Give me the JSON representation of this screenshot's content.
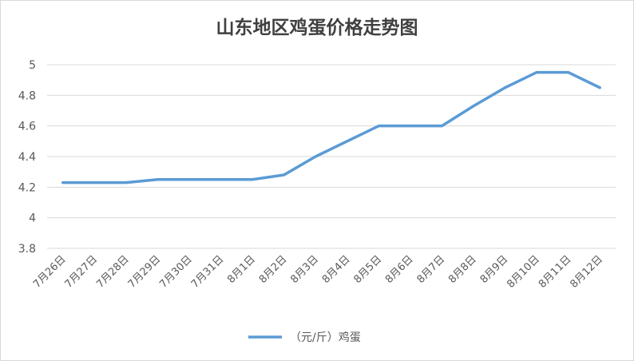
{
  "chart_data": {
    "type": "line",
    "title": "山东地区鸡蛋价格走势图",
    "categories": [
      "7月26日",
      "7月27日",
      "7月28日",
      "7月29日",
      "7月30日",
      "7月31日",
      "8月1日",
      "8月2日",
      "8月3日",
      "8月4日",
      "8月5日",
      "8月6日",
      "8月7日",
      "8月8日",
      "8月9日",
      "8月10日",
      "8月11日",
      "8月12日"
    ],
    "series": [
      {
        "name": "（元/斤）鸡蛋",
        "values": [
          4.23,
          4.23,
          4.23,
          4.25,
          4.25,
          4.25,
          4.25,
          4.28,
          4.4,
          4.5,
          4.6,
          4.6,
          4.6,
          4.73,
          4.85,
          4.95,
          4.95,
          4.85
        ]
      }
    ],
    "ylim": [
      3.8,
      5.0
    ],
    "yticks": [
      "3.8",
      "4",
      "4.2",
      "4.4",
      "4.6",
      "4.8",
      "5"
    ],
    "grid": true,
    "legend_position": "bottom",
    "line_color": "#5b9bd5"
  }
}
